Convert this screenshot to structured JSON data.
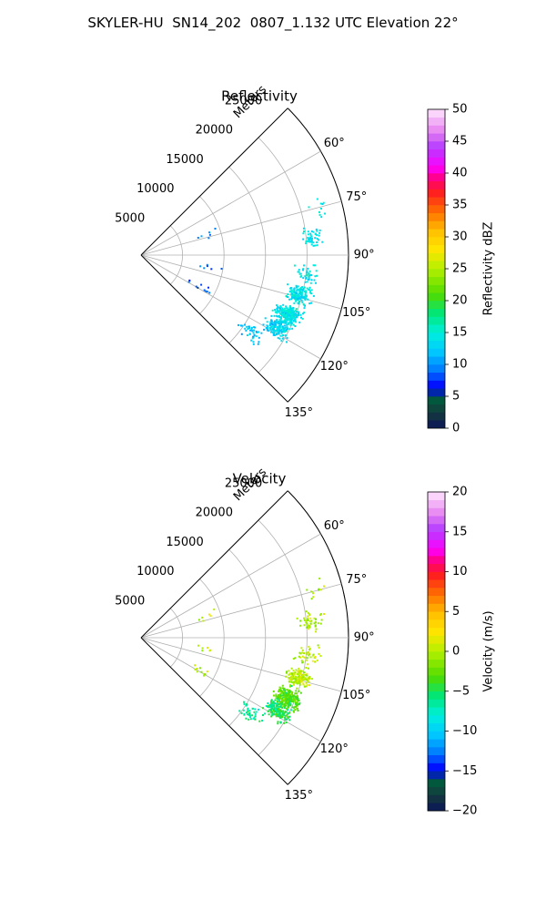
{
  "figure_title": "SKYLER-HU  SN14_202  0807_1.132 UTC Elevation 22°",
  "chart_data": [
    {
      "type": "scatter",
      "title": "Reflectivity",
      "projection": "polar sector",
      "range_label": "Meters",
      "range_ticks": [
        5000,
        10000,
        15000,
        20000,
        25000
      ],
      "range_max": 25000,
      "azimuth_range_deg": [
        45,
        135
      ],
      "azimuth_ticks": [
        "60°",
        "75°",
        "90°",
        "105°",
        "120°",
        "135°"
      ],
      "grid": true,
      "colorbar": {
        "label": "Reflectivity dBZ",
        "min": 0,
        "max": 50,
        "ticks": [
          "0",
          "5",
          "10",
          "15",
          "20",
          "25",
          "30",
          "35",
          "40",
          "45",
          "50"
        ]
      },
      "colors": {
        "main": "#00f0c0",
        "alt": "#33ee99",
        "minor": "#00b8ff"
      },
      "clusters": [
        {
          "azimuth_deg": 75,
          "range_m": 22000,
          "value": 14,
          "count": 10
        },
        {
          "azimuth_deg": 84,
          "range_m": 20500,
          "value": 14,
          "count": 45
        },
        {
          "azimuth_deg": 96,
          "range_m": 20000,
          "value": 14,
          "count": 40
        },
        {
          "azimuth_deg": 104,
          "range_m": 19500,
          "value": 14,
          "count": 150
        },
        {
          "azimuth_deg": 112,
          "range_m": 19000,
          "value": 14,
          "count": 260
        },
        {
          "azimuth_deg": 118,
          "range_m": 18500,
          "value": 13,
          "count": 160
        },
        {
          "azimuth_deg": 125,
          "range_m": 16000,
          "value": 12,
          "count": 40
        },
        {
          "azimuth_deg": 72,
          "range_m": 8500,
          "value": 10,
          "count": 6
        },
        {
          "azimuth_deg": 100,
          "range_m": 8000,
          "value": 9,
          "count": 6
        },
        {
          "azimuth_deg": 118,
          "range_m": 8000,
          "value": 8,
          "count": 10
        }
      ]
    },
    {
      "type": "scatter",
      "title": "Velocity",
      "projection": "polar sector",
      "range_label": "Meters",
      "range_ticks": [
        5000,
        10000,
        15000,
        20000,
        25000
      ],
      "range_max": 25000,
      "azimuth_range_deg": [
        45,
        135
      ],
      "azimuth_ticks": [
        "60°",
        "75°",
        "90°",
        "105°",
        "120°",
        "135°"
      ],
      "grid": true,
      "colorbar": {
        "label": "Velocity (m/s)",
        "min": -20,
        "max": 20,
        "ticks": [
          "−20",
          "−15",
          "−10",
          "−5",
          "0",
          "5",
          "10",
          "15",
          "20"
        ]
      },
      "colors": {
        "main": "#ffe000",
        "alt": "#99e010",
        "minor": "#ffe000"
      },
      "clusters": [
        {
          "azimuth_deg": 75,
          "range_m": 22000,
          "value": 0,
          "count": 10
        },
        {
          "azimuth_deg": 84,
          "range_m": 20500,
          "value": 0,
          "count": 45
        },
        {
          "azimuth_deg": 96,
          "range_m": 20000,
          "value": 0,
          "count": 40
        },
        {
          "azimuth_deg": 104,
          "range_m": 19500,
          "value": 0,
          "count": 150
        },
        {
          "azimuth_deg": 112,
          "range_m": 19000,
          "value": -3,
          "count": 260
        },
        {
          "azimuth_deg": 118,
          "range_m": 18500,
          "value": -5,
          "count": 160
        },
        {
          "azimuth_deg": 125,
          "range_m": 16000,
          "value": -6,
          "count": 40
        },
        {
          "azimuth_deg": 72,
          "range_m": 8500,
          "value": 0,
          "count": 6
        },
        {
          "azimuth_deg": 100,
          "range_m": 8000,
          "value": 0,
          "count": 6
        },
        {
          "azimuth_deg": 118,
          "range_m": 8000,
          "value": 0,
          "count": 10
        }
      ]
    }
  ]
}
